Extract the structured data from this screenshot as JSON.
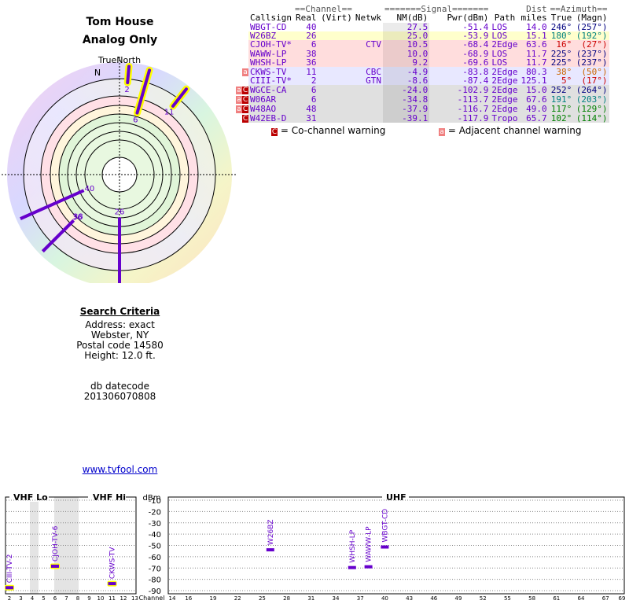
{
  "header": {
    "title_line1": "Tom House",
    "title_line2": "Analog Only"
  },
  "polar": {
    "true_north_label": "TrueNorth",
    "north_label": "N"
  },
  "table": {
    "group_headers": {
      "channel": "==Channel==",
      "signal": "=======Signal=======",
      "dist": "Dist",
      "azimuth": "==Azimuth=="
    },
    "columns": [
      "Callsign",
      "Real",
      "(Virt)",
      "Netwk",
      "NM(dB)",
      "Pwr(dBm)",
      "Path",
      "miles",
      "True",
      "(Magn)"
    ],
    "rows": [
      {
        "warn": "",
        "callsign": "WBGT-CD",
        "real": "40",
        "virt": "",
        "netwk": "",
        "nm": "27.5",
        "pwr": "-51.4",
        "path": "LOS",
        "miles": "14.0",
        "true": "246°",
        "magn": "(257°)",
        "bg": "#ffffff",
        "az_color": "#000080"
      },
      {
        "warn": "",
        "callsign": "W26BZ",
        "real": "26",
        "virt": "",
        "netwk": "",
        "nm": "25.0",
        "pwr": "-53.9",
        "path": "LOS",
        "miles": "15.1",
        "true": "180°",
        "magn": "(192°)",
        "bg": "#ffffcc",
        "az_color": "#008080"
      },
      {
        "warn": "",
        "callsign": "CJOH-TV*",
        "real": "6",
        "virt": "",
        "netwk": "CTV",
        "nm": "10.5",
        "pwr": "-68.4",
        "path": "2Edge",
        "miles": "63.6",
        "true": "16°",
        "magn": "(27°)",
        "bg": "#ffdddd",
        "az_color": "#cc0000"
      },
      {
        "warn": "",
        "callsign": "WAWW-LP",
        "real": "38",
        "virt": "",
        "netwk": "",
        "nm": "10.0",
        "pwr": "-68.9",
        "path": "LOS",
        "miles": "11.7",
        "true": "225°",
        "magn": "(237°)",
        "bg": "#ffdddd",
        "az_color": "#000080"
      },
      {
        "warn": "",
        "callsign": "WHSH-LP",
        "real": "36",
        "virt": "",
        "netwk": "",
        "nm": "9.2",
        "pwr": "-69.6",
        "path": "LOS",
        "miles": "11.7",
        "true": "225°",
        "magn": "(237°)",
        "bg": "#ffdddd",
        "az_color": "#000080"
      },
      {
        "warn": "a",
        "callsign": "CKWS-TV",
        "real": "11",
        "virt": "",
        "netwk": "CBC",
        "nm": "-4.9",
        "pwr": "-83.8",
        "path": "2Edge",
        "miles": "80.3",
        "true": "38°",
        "magn": "(50°)",
        "bg": "#e8e8ff",
        "az_color": "#cc6600"
      },
      {
        "warn": "",
        "callsign": "CIII-TV*",
        "real": "2",
        "virt": "",
        "netwk": "GTN",
        "nm": "-8.6",
        "pwr": "-87.4",
        "path": "2Edge",
        "miles": "125.1",
        "true": "5°",
        "magn": "(17°)",
        "bg": "#e8e8ff",
        "az_color": "#cc0000"
      },
      {
        "warn": "ac",
        "callsign": "WGCE-CA",
        "real": "6",
        "virt": "",
        "netwk": "",
        "nm": "-24.0",
        "pwr": "-102.9",
        "path": "2Edge",
        "miles": "15.0",
        "true": "252°",
        "magn": "(264°)",
        "bg": "#e0e0e0",
        "az_color": "#000080"
      },
      {
        "warn": "ac",
        "callsign": "W06AR",
        "real": "6",
        "virt": "",
        "netwk": "",
        "nm": "-34.8",
        "pwr": "-113.7",
        "path": "2Edge",
        "miles": "67.6",
        "true": "191°",
        "magn": "(203°)",
        "bg": "#e0e0e0",
        "az_color": "#008080"
      },
      {
        "warn": "ac",
        "callsign": "W48AO",
        "real": "48",
        "virt": "",
        "netwk": "",
        "nm": "-37.9",
        "pwr": "-116.7",
        "path": "2Edge",
        "miles": "49.0",
        "true": "117°",
        "magn": "(129°)",
        "bg": "#e0e0e0",
        "az_color": "#008000"
      },
      {
        "warn": "c",
        "callsign": "W42EB-D",
        "real": "31",
        "virt": "",
        "netwk": "",
        "nm": "-39.1",
        "pwr": "-117.9",
        "path": "Tropo",
        "miles": "65.7",
        "true": "102°",
        "magn": "(114°)",
        "bg": "#e0e0e0",
        "az_color": "#008000"
      }
    ]
  },
  "legend": {
    "cochannel_glyph": "C",
    "cochannel_text": "= Co-channel warning",
    "adjacent_glyph": "a",
    "adjacent_text": "= Adjacent channel warning"
  },
  "criteria": {
    "heading": "Search Criteria",
    "address": "Address: exact",
    "city": "Webster, NY",
    "postal": "Postal code 14580",
    "height": "Height: 12.0 ft.",
    "db_label": "db datecode",
    "db_value": "201306070808"
  },
  "link": {
    "text": "www.tvfool.com"
  },
  "chart_data": [
    {
      "type": "polar",
      "series": [
        {
          "channel": "2",
          "azimuth_true": 5,
          "nm_db": -8.6
        },
        {
          "channel": "6",
          "azimuth_true": 16,
          "nm_db": 10.5
        },
        {
          "channel": "11",
          "azimuth_true": 38,
          "nm_db": -4.9
        },
        {
          "channel": "40",
          "azimuth_true": 246,
          "nm_db": 27.5
        },
        {
          "channel": "38",
          "azimuth_true": 225,
          "nm_db": 10.0
        },
        {
          "channel": "36",
          "azimuth_true": 225,
          "nm_db": 9.2
        },
        {
          "channel": "26",
          "azimuth_true": 180,
          "nm_db": 25.0
        }
      ],
      "line_color": "#6600cc",
      "weak_outline_color": "#ffff00"
    },
    {
      "type": "bar",
      "ylabel": "dBm",
      "xlabel": "Channel",
      "ylim": [
        -90,
        -10
      ],
      "yticks": [
        "-10",
        "-20",
        "-30",
        "-40",
        "-50",
        "-60",
        "-70",
        "-80",
        "-90"
      ],
      "sections": {
        "vhf_lo": "VHF Lo",
        "vhf_hi": "VHF Hi",
        "uhf": "UHF"
      },
      "vhf_ticks": [
        "2",
        "3",
        "4",
        "5",
        "6",
        "7",
        "8",
        "9",
        "10",
        "11",
        "12",
        "13"
      ],
      "uhf_ticks": [
        "14",
        "16",
        "19",
        "22",
        "25",
        "28",
        "31",
        "34",
        "37",
        "40",
        "43",
        "46",
        "49",
        "52",
        "55",
        "58",
        "61",
        "64",
        "67",
        "69"
      ],
      "markers": [
        {
          "label": "CIII-TV-2",
          "channel": 2,
          "dbm": -87.4,
          "outline": true
        },
        {
          "label": "CJOH-TV-6",
          "channel": 6,
          "dbm": -68.4,
          "outline": true
        },
        {
          "label": "CKWS-TV",
          "channel": 11,
          "dbm": -83.8,
          "outline": true
        },
        {
          "label": "W26BZ",
          "channel": 26,
          "dbm": -53.9,
          "outline": false
        },
        {
          "label": "WHSH-LP",
          "channel": 36,
          "dbm": -69.6,
          "outline": false
        },
        {
          "label": "WAWW-LP",
          "channel": 38,
          "dbm": -68.9,
          "outline": false
        },
        {
          "label": "WBGT-CD",
          "channel": 40,
          "dbm": -51.4,
          "outline": false
        }
      ],
      "marker_color": "#6600cc"
    }
  ]
}
